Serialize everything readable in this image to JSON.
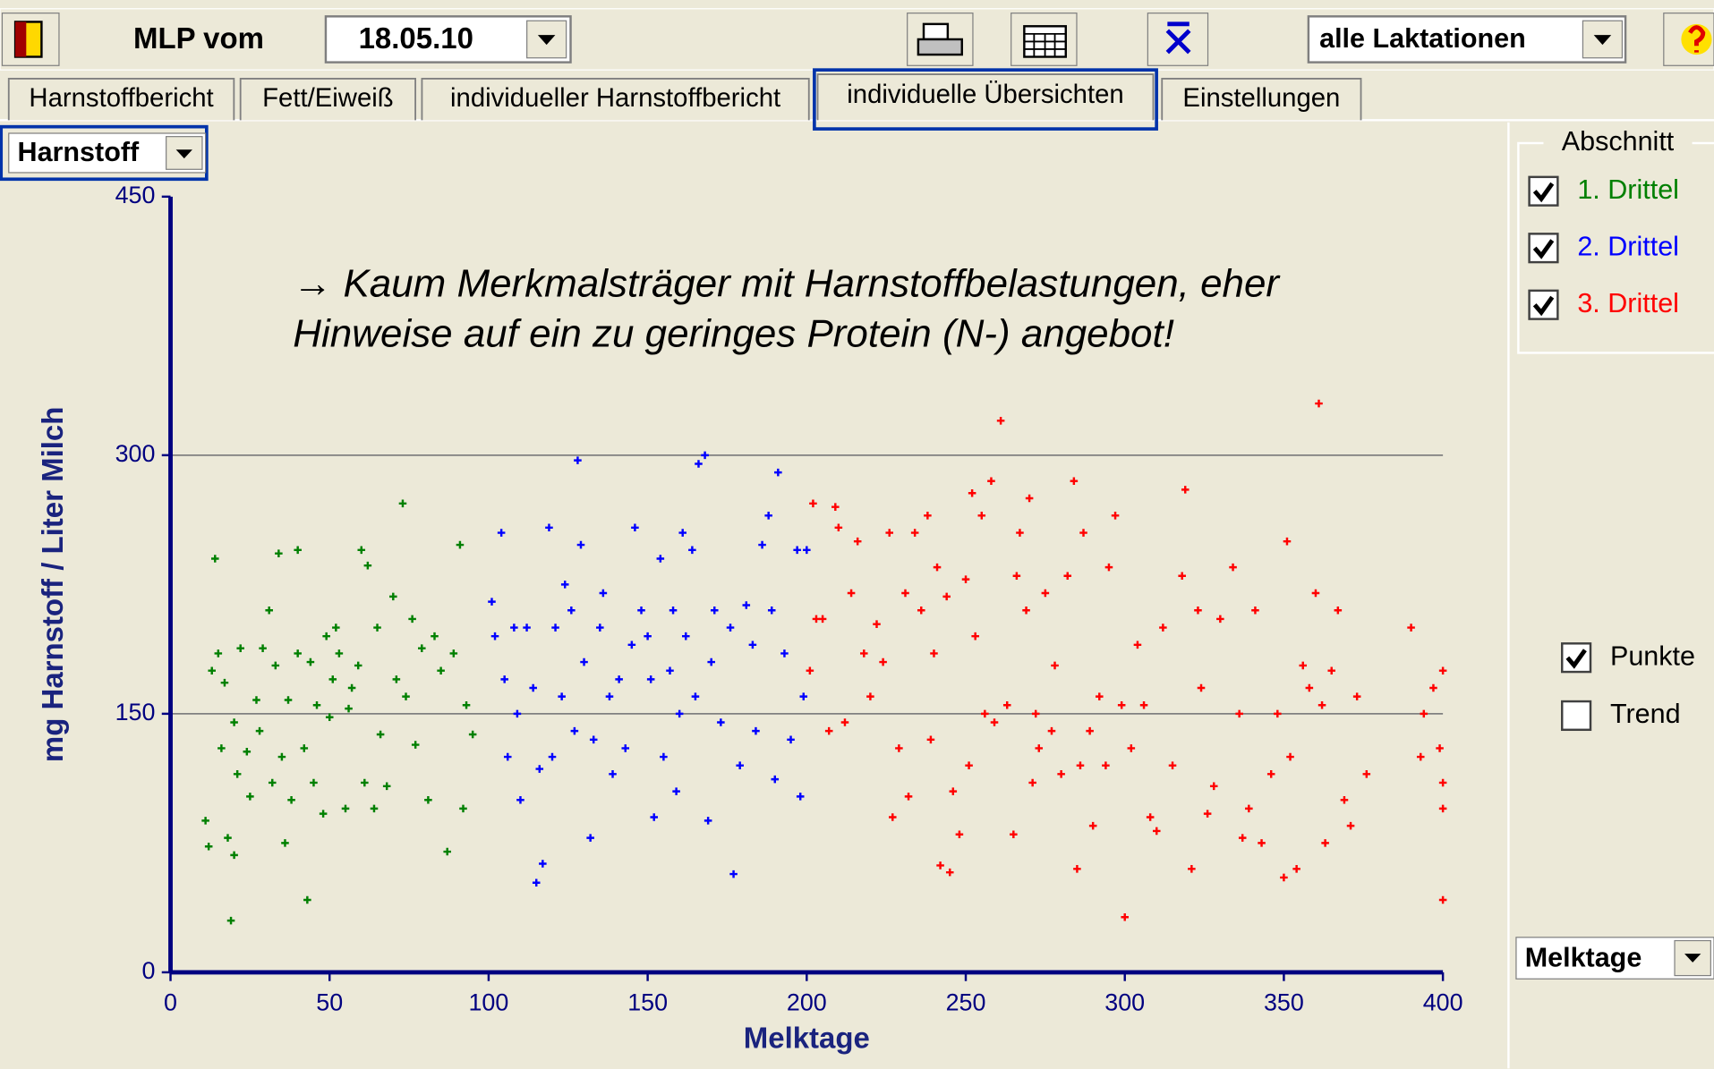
{
  "toolbar": {
    "label": "MLP vom",
    "date": "18.05.10",
    "lactation": "alle Laktationen"
  },
  "tabs": {
    "items": [
      "Harnstoffbericht",
      "Fett/Eiweiß",
      "individueller Harnstoffbericht",
      "individuelle Übersichten",
      "Einstellungen"
    ],
    "active": 3
  },
  "selector": "Harnstoff",
  "chart_data": {
    "type": "scatter",
    "annotation": [
      "→ Kaum Merkmalsträger mit Harnstoffbelastungen, eher",
      "Hinweise auf ein zu geringes Protein (N-) angebot!"
    ],
    "xlabel": "Melktage",
    "ylabel": "mg Harnstoff / Liter Milch",
    "xlim": [
      0,
      400
    ],
    "ylim": [
      0,
      450
    ],
    "xticks": [
      0,
      50,
      100,
      150,
      200,
      250,
      300,
      350,
      400
    ],
    "yticks": [
      0,
      150,
      300,
      450
    ],
    "grid": true,
    "series": [
      {
        "name": "1. Drittel",
        "color": "#008000",
        "checked": true,
        "x": [
          11,
          12,
          13,
          14,
          15,
          16,
          17,
          18,
          19,
          20,
          20,
          21,
          22,
          24,
          25,
          27,
          28,
          29,
          31,
          32,
          33,
          34,
          35,
          36,
          37,
          38,
          40,
          40,
          42,
          43,
          44,
          45,
          46,
          48,
          49,
          50,
          51,
          52,
          53,
          55,
          56,
          57,
          59,
          60,
          61,
          62,
          64,
          65,
          66,
          68,
          70,
          71,
          73,
          74,
          76,
          77,
          79,
          81,
          83,
          85,
          87,
          89,
          91,
          92,
          93,
          95
        ],
        "values": [
          88,
          73,
          175,
          240,
          185,
          130,
          168,
          78,
          30,
          68,
          145,
          115,
          188,
          128,
          102,
          158,
          140,
          188,
          210,
          110,
          178,
          243,
          125,
          75,
          158,
          100,
          245,
          185,
          130,
          42,
          180,
          110,
          155,
          92,
          195,
          148,
          170,
          200,
          185,
          95,
          153,
          165,
          178,
          245,
          110,
          236,
          95,
          200,
          138,
          108,
          218,
          170,
          272,
          160,
          205,
          132,
          188,
          100,
          195,
          175,
          70,
          185,
          248,
          95,
          155,
          138
        ]
      },
      {
        "name": "2. Drittel",
        "color": "#0000ff",
        "checked": true,
        "x": [
          101,
          102,
          104,
          105,
          106,
          108,
          109,
          110,
          112,
          114,
          115,
          116,
          117,
          119,
          120,
          121,
          123,
          124,
          126,
          127,
          128,
          129,
          130,
          132,
          133,
          135,
          136,
          138,
          139,
          141,
          143,
          145,
          146,
          148,
          150,
          151,
          152,
          154,
          155,
          157,
          158,
          159,
          160,
          161,
          162,
          164,
          165,
          166,
          168,
          169,
          170,
          171,
          173,
          176,
          177,
          179,
          181,
          183,
          184,
          186,
          188,
          189,
          190,
          191,
          193,
          195,
          197,
          198,
          199,
          200
        ],
        "values": [
          215,
          195,
          255,
          170,
          125,
          200,
          150,
          100,
          200,
          165,
          52,
          118,
          63,
          258,
          125,
          200,
          160,
          225,
          210,
          140,
          297,
          248,
          180,
          78,
          135,
          200,
          220,
          160,
          115,
          170,
          130,
          190,
          258,
          210,
          195,
          170,
          90,
          240,
          125,
          175,
          210,
          105,
          150,
          255,
          195,
          245,
          160,
          295,
          300,
          88,
          180,
          210,
          145,
          200,
          57,
          120,
          213,
          190,
          140,
          248,
          265,
          210,
          112,
          290,
          185,
          135,
          245,
          102,
          160,
          245
        ]
      },
      {
        "name": "3. Drittel",
        "color": "#ff0000",
        "checked": true,
        "x": [
          201,
          202,
          203,
          205,
          207,
          209,
          210,
          212,
          214,
          216,
          218,
          220,
          222,
          224,
          226,
          227,
          229,
          231,
          232,
          234,
          236,
          238,
          239,
          240,
          241,
          242,
          244,
          245,
          246,
          248,
          250,
          251,
          252,
          253,
          255,
          256,
          258,
          259,
          261,
          263,
          265,
          266,
          267,
          269,
          270,
          271,
          272,
          273,
          275,
          277,
          278,
          280,
          282,
          284,
          285,
          286,
          287,
          289,
          290,
          292,
          294,
          295,
          297,
          299,
          300,
          302,
          304,
          306,
          308,
          310,
          312,
          315,
          318,
          319,
          321,
          323,
          324,
          326,
          328,
          330,
          334,
          336,
          337,
          339,
          341,
          343,
          346,
          348,
          350,
          351,
          352,
          354,
          356,
          358,
          360,
          361,
          362,
          363,
          365,
          367,
          369,
          371,
          373,
          376,
          390,
          393,
          394,
          397,
          399,
          400,
          400,
          400,
          400
        ],
        "values": [
          175,
          272,
          205,
          205,
          140,
          270,
          258,
          145,
          220,
          250,
          185,
          160,
          202,
          180,
          255,
          90,
          130,
          220,
          102,
          255,
          210,
          265,
          135,
          185,
          235,
          62,
          218,
          58,
          105,
          80,
          228,
          120,
          278,
          195,
          265,
          150,
          285,
          145,
          320,
          155,
          80,
          230,
          255,
          210,
          275,
          110,
          150,
          130,
          220,
          140,
          178,
          115,
          230,
          285,
          60,
          120,
          255,
          140,
          85,
          160,
          120,
          235,
          265,
          155,
          32,
          130,
          190,
          155,
          90,
          82,
          200,
          120,
          230,
          280,
          60,
          210,
          165,
          92,
          108,
          205,
          235,
          150,
          78,
          95,
          210,
          75,
          115,
          150,
          55,
          250,
          125,
          60,
          178,
          165,
          220,
          330,
          155,
          75,
          175,
          210,
          100,
          85,
          160,
          115,
          200,
          125,
          150,
          165,
          130,
          175,
          95,
          42,
          110
        ]
      }
    ]
  },
  "panel": {
    "group_title": "Abschnitt",
    "options": [
      {
        "label": "Punkte",
        "checked": true
      },
      {
        "label": "Trend",
        "checked": false
      }
    ],
    "x_selector": "Melktage"
  }
}
